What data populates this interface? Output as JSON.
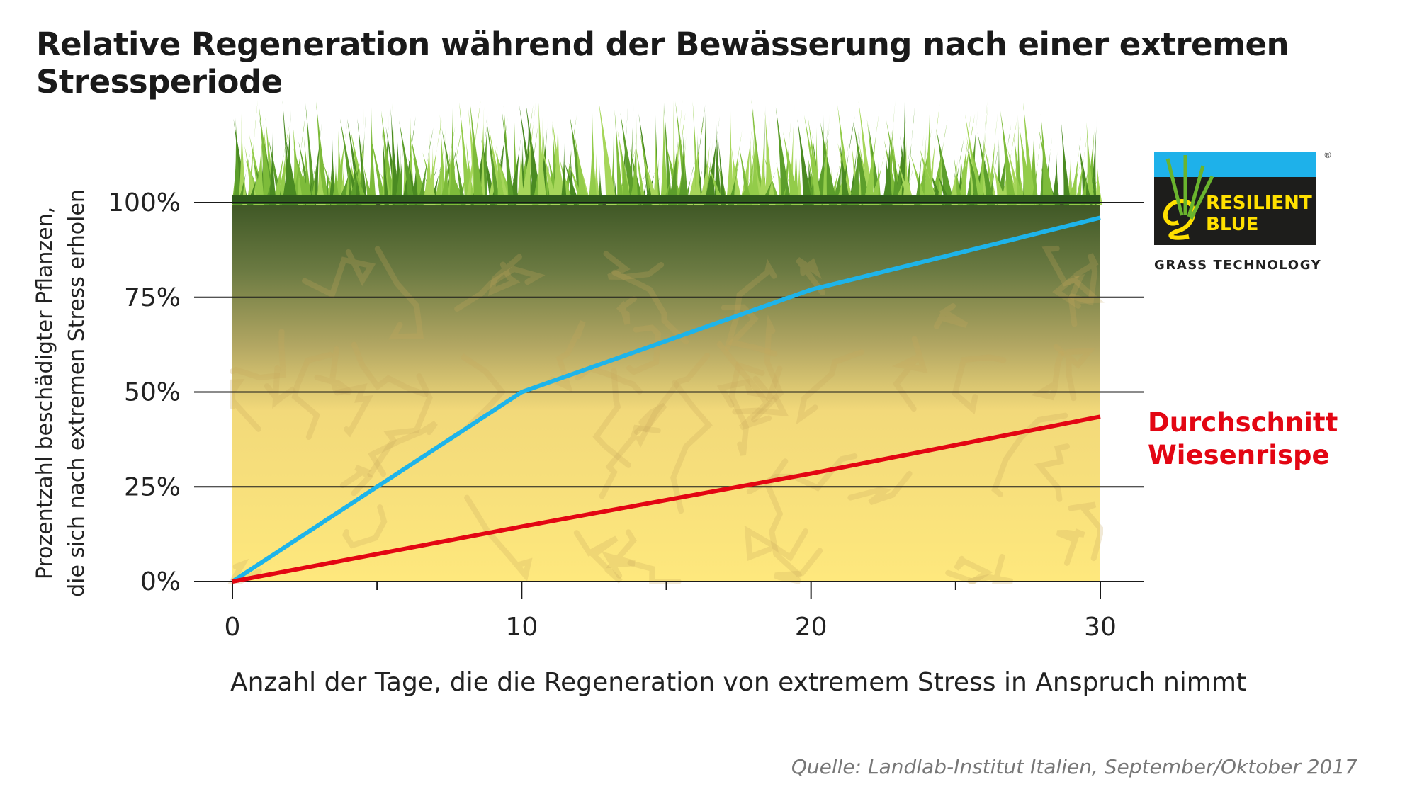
{
  "title": "Relative Regeneration während der Bewässerung nach einer extremen Stressperiode",
  "source": "Quelle: Landlab-Institut Italien, September/Oktober 2017",
  "logo": {
    "line1": "RESILIENT",
    "line2": "BLUE",
    "tagline": "GRASS TECHNOLOGY",
    "registered": "®",
    "colors": {
      "top": "#1eb1ea",
      "bg": "#1d1d1b",
      "text": "#ffe000"
    }
  },
  "chart_data": {
    "type": "line",
    "title": "Relative Regeneration während der Bewässerung nach einer extremen Stressperiode",
    "xlabel": "Anzahl der Tage, die die Regeneration von extremem Stress in Anspruch nimmt",
    "ylabel": [
      "Prozentzahl beschädigter Pflanzen,",
      "die sich nach extremen Stress erholen"
    ],
    "xlim": [
      0,
      30
    ],
    "ylim": [
      0,
      100
    ],
    "xticks": [
      0,
      10,
      20,
      30
    ],
    "xticks_minor": [
      5,
      15,
      25
    ],
    "xtick_labels": [
      "0",
      "10",
      "20",
      "30"
    ],
    "yticks": [
      0,
      25,
      50,
      75,
      100
    ],
    "ytick_labels": [
      "0%",
      "25%",
      "50%",
      "75%",
      "100%"
    ],
    "grid": "horizontal",
    "series": [
      {
        "name": "",
        "color": "#1eb4ea",
        "x": [
          0,
          10,
          20,
          30
        ],
        "y": [
          0,
          50,
          77,
          96
        ]
      },
      {
        "name": "Durchschnitt Wiesenrispe",
        "color": "#e30613",
        "x": [
          0,
          10,
          20,
          30
        ],
        "y": [
          0,
          14.5,
          28.5,
          43.5
        ]
      }
    ],
    "legend": {
      "labels": [
        "Durchschnitt",
        "Wiesenrispe"
      ],
      "placement": "right"
    }
  }
}
